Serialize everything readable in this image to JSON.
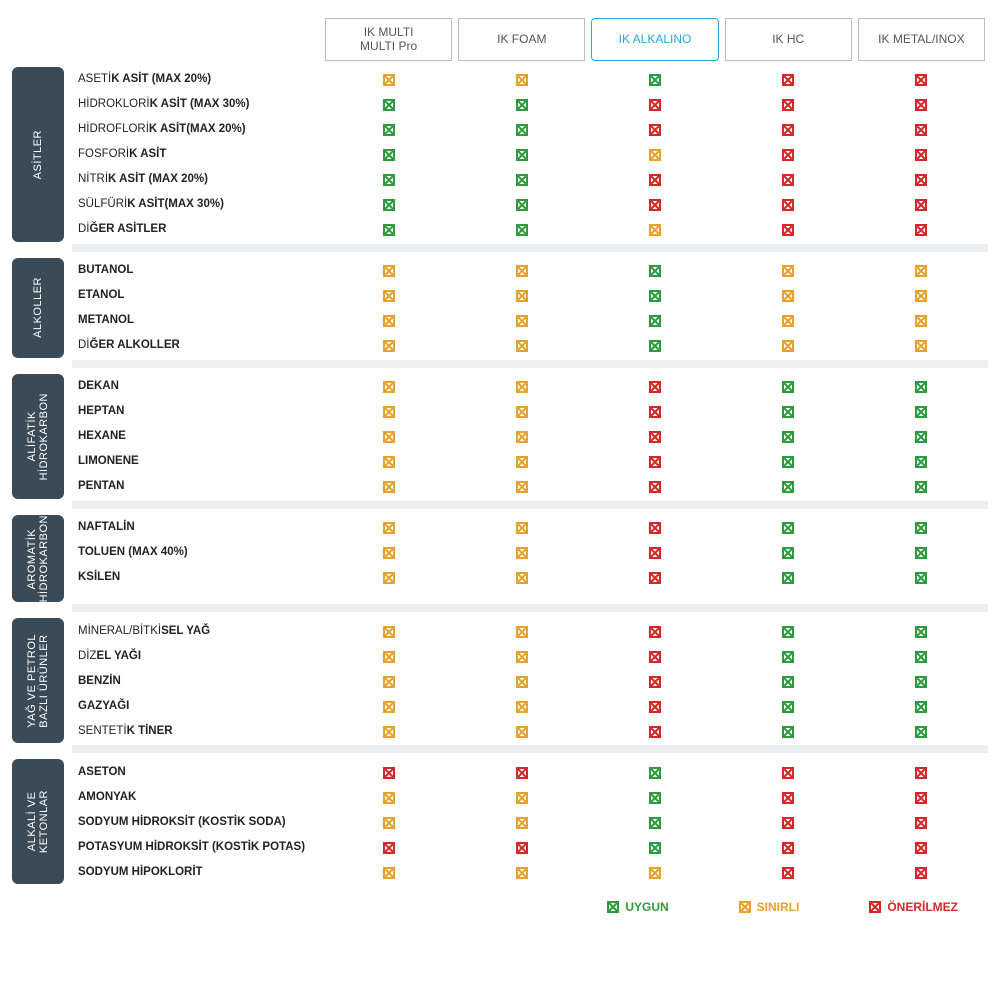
{
  "type": "compatibility-matrix-table",
  "colors": {
    "green": "#2e9b3f",
    "orange": "#e8a12a",
    "red": "#d62828",
    "category_bg": "#3a4a56",
    "category_text": "#ffffff",
    "header_border": "#bcbcbc",
    "header_text": "#555555",
    "highlight_border": "#2aa8d8",
    "gap_bg": "#eceff1",
    "page_bg": "#ffffff"
  },
  "columns": [
    {
      "id": "multi",
      "label": "IK MULTI\nMULTI Pro",
      "highlight": false
    },
    {
      "id": "foam",
      "label": "IK FOAM",
      "highlight": false
    },
    {
      "id": "alkalino",
      "label": "IK ALKALINO",
      "highlight": true
    },
    {
      "id": "hc",
      "label": "IK HC",
      "highlight": false
    },
    {
      "id": "metal",
      "label": "IK METAL/INOX",
      "highlight": false
    }
  ],
  "legend": [
    {
      "label": "UYGUN",
      "status": "g"
    },
    {
      "label": "SINIRLI",
      "status": "o"
    },
    {
      "label": "ÖNERİLMEZ",
      "status": "r"
    }
  ],
  "sections": [
    {
      "category": "ASİTLER",
      "rows": [
        {
          "text_pre": "ASETİ",
          "text_bold": "K ASİT (MAX 20%)",
          "cells": [
            "o",
            "o",
            "g",
            "r",
            "r"
          ]
        },
        {
          "text_pre": "HİDROKLORİ",
          "text_bold": "K ASİT (MAX 30%)",
          "cells": [
            "g",
            "g",
            "r",
            "r",
            "r"
          ]
        },
        {
          "text_pre": "HİDROFLORİ",
          "text_bold": "K ASİT(MAX 20%)",
          "cells": [
            "g",
            "g",
            "r",
            "r",
            "r"
          ]
        },
        {
          "text_pre": "FOSFORİ",
          "text_bold": "K ASİT",
          "cells": [
            "g",
            "g",
            "o",
            "r",
            "r"
          ]
        },
        {
          "text_pre": "NİTRİ",
          "text_bold": "K ASİT (MAX 20%)",
          "cells": [
            "g",
            "g",
            "r",
            "r",
            "r"
          ]
        },
        {
          "text_pre": "SÜLFÜRİ",
          "text_bold": "K ASİT(MAX 30%)",
          "cells": [
            "g",
            "g",
            "r",
            "r",
            "r"
          ]
        },
        {
          "text_pre": "Dİ",
          "text_bold": "ĞER ASİTLER",
          "cells": [
            "g",
            "g",
            "o",
            "r",
            "r"
          ]
        }
      ]
    },
    {
      "category": "ALKOLLER",
      "rows": [
        {
          "text_pre": "",
          "text_bold": "BUTANOL",
          "cells": [
            "o",
            "o",
            "g",
            "o",
            "o"
          ]
        },
        {
          "text_pre": "",
          "text_bold": "ETANOL",
          "cells": [
            "o",
            "o",
            "g",
            "o",
            "o"
          ]
        },
        {
          "text_pre": "",
          "text_bold": "METANOL",
          "cells": [
            "o",
            "o",
            "g",
            "o",
            "o"
          ]
        },
        {
          "text_pre": "Dİ",
          "text_bold": "ĞER ALKOLLER",
          "cells": [
            "o",
            "o",
            "g",
            "o",
            "o"
          ]
        }
      ]
    },
    {
      "category": "ALİFATİK\nHİDROKARBON",
      "rows": [
        {
          "text_pre": "",
          "text_bold": "DEKAN",
          "cells": [
            "o",
            "o",
            "r",
            "g",
            "g"
          ]
        },
        {
          "text_pre": "",
          "text_bold": "HEPTAN",
          "cells": [
            "o",
            "o",
            "r",
            "g",
            "g"
          ]
        },
        {
          "text_pre": "",
          "text_bold": "HEXANE",
          "cells": [
            "o",
            "o",
            "r",
            "g",
            "g"
          ]
        },
        {
          "text_pre": "",
          "text_bold": "LIMONENE",
          "cells": [
            "o",
            "o",
            "r",
            "g",
            "g"
          ]
        },
        {
          "text_pre": "",
          "text_bold": "PENTAN",
          "cells": [
            "o",
            "o",
            "r",
            "g",
            "g"
          ]
        }
      ]
    },
    {
      "category": "AROMATİK\nHİDROKARBON",
      "rows": [
        {
          "text_pre": "",
          "text_bold": "NAFTALİN",
          "cells": [
            "o",
            "o",
            "r",
            "g",
            "g"
          ]
        },
        {
          "text_pre": "",
          "text_bold": "TOLUEN (MAX 40%)",
          "cells": [
            "o",
            "o",
            "r",
            "g",
            "g"
          ]
        },
        {
          "text_pre": "",
          "text_bold": "KSİLEN",
          "cells": [
            "o",
            "o",
            "r",
            "g",
            "g"
          ]
        }
      ]
    },
    {
      "category": "YAĞ VE PETROL\nBAZLI ÜRÜNLER",
      "rows": [
        {
          "text_pre": "MİNERAL/BİTKİ",
          "text_bold": "SEL YAĞ",
          "cells": [
            "o",
            "o",
            "r",
            "g",
            "g"
          ]
        },
        {
          "text_pre": "DİZ",
          "text_bold": "EL YAĞI",
          "cells": [
            "o",
            "o",
            "r",
            "g",
            "g"
          ]
        },
        {
          "text_pre": "",
          "text_bold": "BENZİN",
          "cells": [
            "o",
            "o",
            "r",
            "g",
            "g"
          ]
        },
        {
          "text_pre": "",
          "text_bold": "GAZYAĞI",
          "cells": [
            "o",
            "o",
            "r",
            "g",
            "g"
          ]
        },
        {
          "text_pre": "SENTETİ",
          "text_bold": "K TİNER",
          "cells": [
            "o",
            "o",
            "r",
            "g",
            "g"
          ]
        }
      ]
    },
    {
      "category": "ALKALİ VE\nKETONLAR",
      "rows": [
        {
          "text_pre": "",
          "text_bold": "ASETON",
          "cells": [
            "r",
            "r",
            "g",
            "r",
            "r"
          ]
        },
        {
          "text_pre": "",
          "text_bold": "AMONYAK",
          "cells": [
            "o",
            "o",
            "g",
            "r",
            "r"
          ]
        },
        {
          "text_pre": "",
          "text_bold": "SODYUM HİDROKSİT (KOSTİK SODA)",
          "cells": [
            "o",
            "o",
            "g",
            "r",
            "r"
          ]
        },
        {
          "text_pre": "",
          "text_bold": "POTASYUM HİDROKSİT (KOSTİK POTAS)",
          "cells": [
            "r",
            "r",
            "g",
            "r",
            "r"
          ]
        },
        {
          "text_pre": "",
          "text_bold": "SODYUM HİPOKLORİT",
          "cells": [
            "o",
            "o",
            "o",
            "r",
            "r"
          ]
        }
      ]
    }
  ]
}
